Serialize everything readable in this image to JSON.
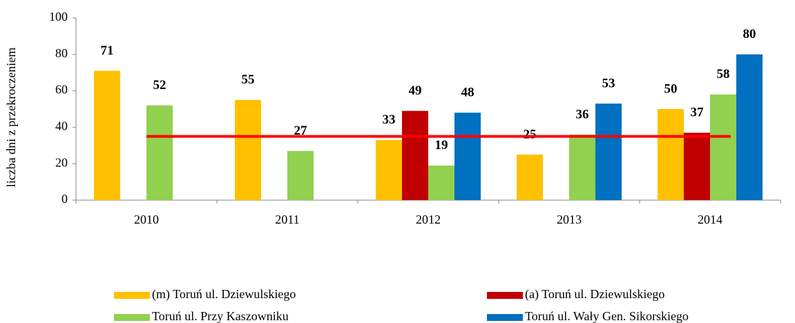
{
  "chart_data": {
    "type": "bar",
    "y_label": "liczba dni z przekroczeniem",
    "categories": [
      "2010",
      "2011",
      "2012",
      "2013",
      "2014"
    ],
    "series": [
      {
        "name": "(m) Toruń ul. Dziewulskiego",
        "color": "#ffc000",
        "values": [
          71,
          55,
          33,
          25,
          50
        ]
      },
      {
        "name": "(a) Toruń ul. Dziewulskiego",
        "color": "#c00000",
        "values": [
          null,
          null,
          49,
          null,
          37
        ]
      },
      {
        "name": "Toruń ul. Przy Kaszowniku",
        "color": "#92d050",
        "values": [
          52,
          27,
          19,
          36,
          58
        ]
      },
      {
        "name": "Toruń ul. Wały Gen. Sikorskiego",
        "color": "#0070c0",
        "values": [
          null,
          null,
          48,
          53,
          80
        ]
      }
    ],
    "reference_line": {
      "value": 35,
      "color": "#ff0000"
    },
    "ylim": [
      0,
      100
    ],
    "yticks": [
      0,
      20,
      40,
      60,
      80,
      100
    ],
    "grid": false
  }
}
